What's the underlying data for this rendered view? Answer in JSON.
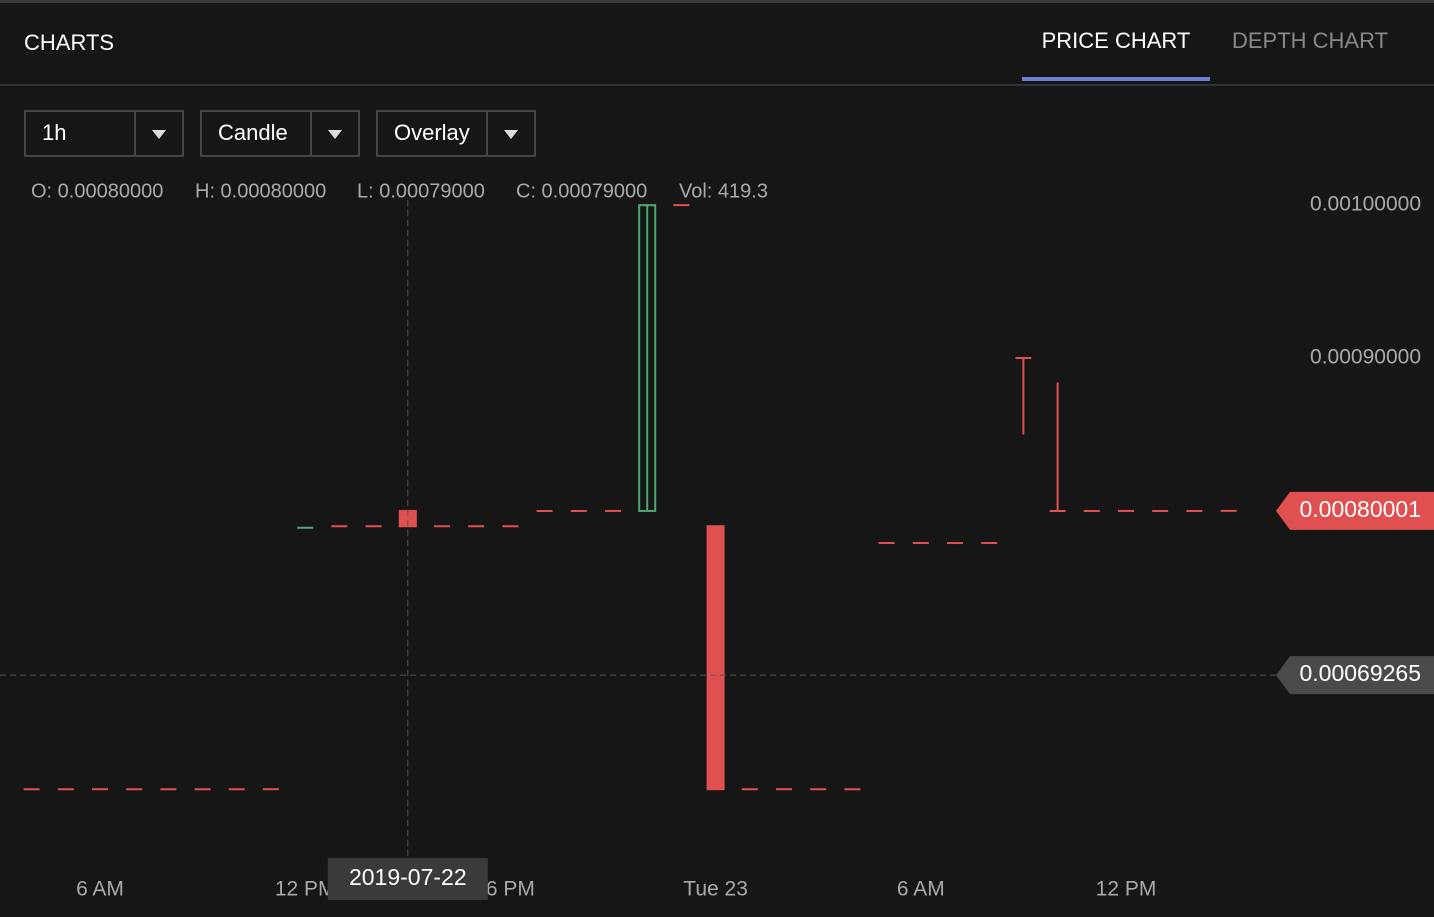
{
  "header": {
    "title": "CHARTS",
    "tabs": [
      "PRICE CHART",
      "DEPTH CHART"
    ]
  },
  "controls": [
    "1h",
    "Candle",
    "Overlay"
  ],
  "readout": [
    "O: 0.00080000",
    "H: 0.00080000",
    "L: 0.00079000",
    "C: 0.00079000",
    "Vol: 419.3"
  ],
  "chart_data": {
    "type": "candlestick",
    "categories": [
      null,
      null,
      "6 AM",
      null,
      null,
      null,
      null,
      null,
      "12 PM",
      null,
      null,
      null,
      null,
      null,
      "6 PM",
      null,
      null,
      null,
      null,
      null,
      "Tue 23",
      null,
      null,
      null,
      null,
      null,
      "6 AM",
      null,
      null,
      null,
      null,
      null,
      "12 PM",
      null,
      null,
      null
    ],
    "open": [
      0.000618,
      0.000618,
      0.000618,
      0.000618,
      0.000618,
      0.000618,
      0.000618,
      0.000618,
      0.000789,
      0.00079,
      0.00079,
      0.0008,
      0.00079,
      0.00079,
      0.00079,
      0.0008,
      0.0008,
      0.0008,
      0.0008,
      0.001,
      0.00079,
      0.000618,
      0.000618,
      0.000618,
      0.000618,
      0.000779,
      0.000779,
      0.000779,
      0.000779,
      0.0009,
      0.0008,
      0.0008,
      0.0008,
      0.0008,
      0.0008,
      0.00080001
    ],
    "high": [
      0.000618,
      0.000618,
      0.000618,
      0.000618,
      0.000618,
      0.000618,
      0.000618,
      0.000618,
      0.000789,
      0.00079,
      0.00079,
      0.0008,
      0.00079,
      0.00079,
      0.00079,
      0.0008,
      0.0008,
      0.0008,
      0.001,
      0.001,
      0.00079,
      0.000618,
      0.000618,
      0.000618,
      0.000618,
      0.000779,
      0.000779,
      0.000779,
      0.000779,
      0.0009,
      0.000884,
      0.0008,
      0.0008,
      0.0008,
      0.0008,
      0.00080001
    ],
    "low": [
      0.000618,
      0.000618,
      0.000618,
      0.000618,
      0.000618,
      0.000618,
      0.000618,
      0.000618,
      0.000789,
      0.00079,
      0.00079,
      0.00079,
      0.00079,
      0.00079,
      0.00079,
      0.0008,
      0.0008,
      0.0008,
      0.0008,
      0.001,
      0.000618,
      0.000618,
      0.000618,
      0.000618,
      0.000618,
      0.000779,
      0.000779,
      0.000779,
      0.000779,
      0.00085,
      0.0008,
      0.0008,
      0.0008,
      0.0008,
      0.0008,
      0.00080001
    ],
    "close": [
      0.000618,
      0.000618,
      0.000618,
      0.000618,
      0.000618,
      0.000618,
      0.000618,
      0.000618,
      0.000789,
      0.00079,
      0.00079,
      0.00079,
      0.00079,
      0.00079,
      0.00079,
      0.0008,
      0.0008,
      0.0008,
      0.001,
      0.001,
      0.000618,
      0.000618,
      0.000618,
      0.000618,
      0.000618,
      0.000779,
      0.000779,
      0.000779,
      0.000779,
      0.0009,
      0.0008,
      0.0008,
      0.0008,
      0.0008,
      0.0008,
      0.00080001
    ],
    "up_color": "#4fa872",
    "down_color": "#e05050",
    "up": [
      false,
      false,
      false,
      false,
      false,
      false,
      false,
      false,
      true,
      false,
      false,
      false,
      false,
      false,
      false,
      false,
      false,
      false,
      true,
      false,
      false,
      false,
      false,
      false,
      false,
      false,
      false,
      false,
      false,
      false,
      false,
      false,
      false,
      false,
      false,
      false
    ],
    "ylim": [
      0.000573,
      0.001023
    ],
    "yticks": [
      {
        "value": 0.001,
        "label": "0.00100000"
      },
      {
        "value": 0.0009,
        "label": "0.00090000"
      }
    ],
    "last_price": {
      "value": 0.00080001,
      "label": "0.00080001"
    },
    "crosshair": {
      "index": 11,
      "date": "2019-07-22",
      "price": {
        "value": 0.00069265,
        "label": "0.00069265"
      }
    }
  }
}
